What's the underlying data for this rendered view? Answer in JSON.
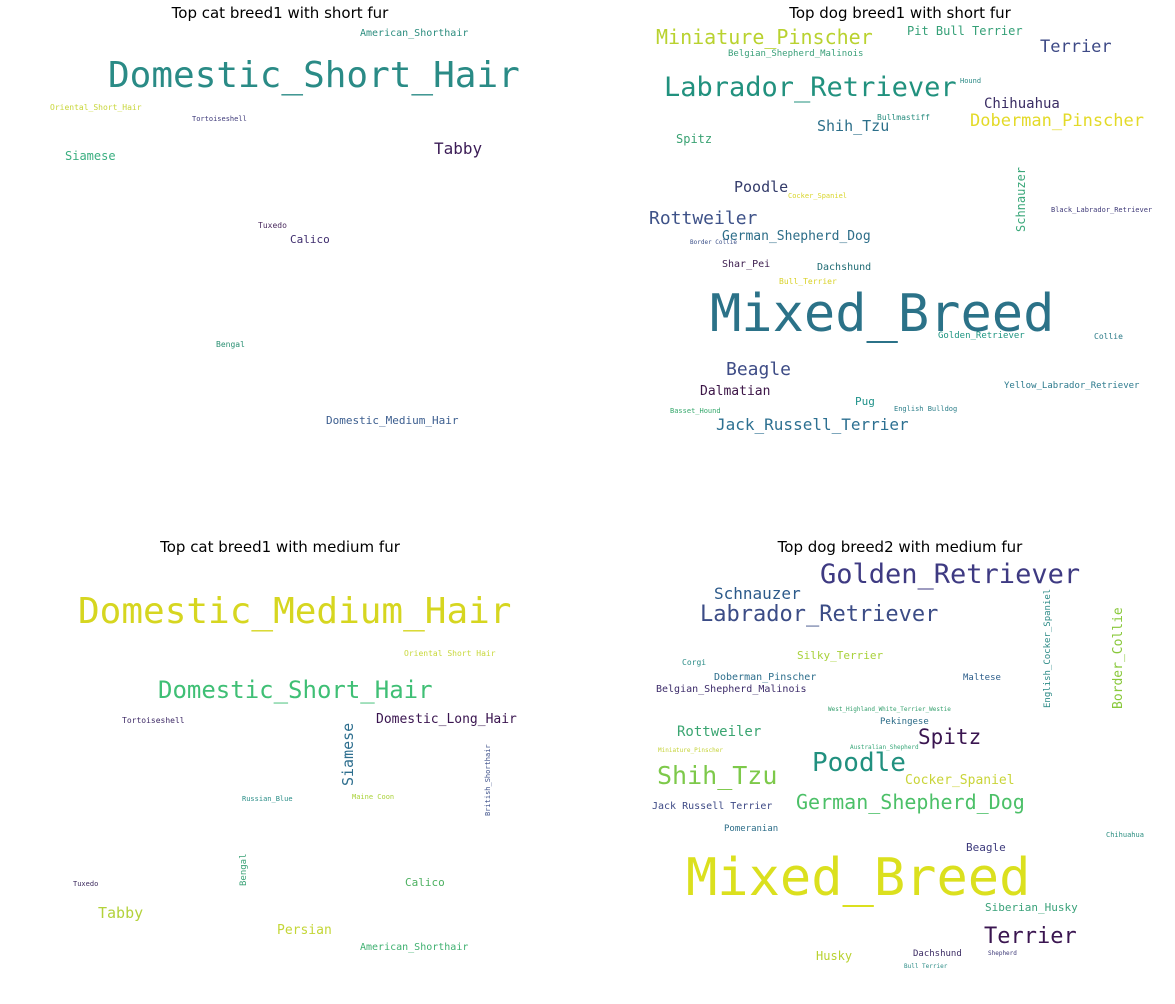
{
  "panels": [
    {
      "title": "Top cat breed1 with short fur",
      "words": [
        {
          "text": "Domestic_Short_Hair",
          "color": "#2a8b86"
        },
        {
          "text": "American_Shorthair",
          "color": "#2b8c7e"
        },
        {
          "text": "Tabby",
          "color": "#3b1c56"
        },
        {
          "text": "Siamese",
          "color": "#3aae80"
        },
        {
          "text": "Tortoiseshell",
          "color": "#3e3a7a"
        },
        {
          "text": "Oriental_Short_Hair",
          "color": "#c8d63a"
        },
        {
          "text": "Calico",
          "color": "#3e2c6d"
        },
        {
          "text": "Tuxedo",
          "color": "#4a2a5e"
        },
        {
          "text": "Bengal",
          "color": "#2b9073"
        },
        {
          "text": "Domestic_Medium_Hair",
          "color": "#3c5e8f"
        }
      ]
    },
    {
      "title": "Top dog breed1 with short fur",
      "words": [
        {
          "text": "Miniature_Pinscher",
          "color": "#b9d22f"
        },
        {
          "text": "Pit Bull Terrier",
          "color": "#35a077"
        },
        {
          "text": "Terrier",
          "color": "#3e4a86"
        },
        {
          "text": "Belgian_Shepherd_Malinois",
          "color": "#3aa07a"
        },
        {
          "text": "Labrador_Retriever",
          "color": "#21917e"
        },
        {
          "text": "Chihuahua",
          "color": "#3a2d64"
        },
        {
          "text": "Shih_Tzu",
          "color": "#2c6f8a"
        },
        {
          "text": "Doberman_Pinscher",
          "color": "#e3da28"
        },
        {
          "text": "Spitz",
          "color": "#3aa273"
        },
        {
          "text": "Poodle",
          "color": "#333b6a"
        },
        {
          "text": "Schnauzer",
          "color": "#3ba87a"
        },
        {
          "text": "Rottweiler",
          "color": "#3e5288"
        },
        {
          "text": "German_Shepherd_Dog",
          "color": "#2c6d88"
        },
        {
          "text": "Shar_Pei",
          "color": "#3c1d4e"
        },
        {
          "text": "Dachshund",
          "color": "#206c74"
        },
        {
          "text": "Bull_Terrier",
          "color": "#d9d228"
        },
        {
          "text": "Mixed_Breed",
          "color": "#2b7288"
        },
        {
          "text": "Golden_Retriever",
          "color": "#1d9480"
        },
        {
          "text": "Collie",
          "color": "#2a7a87"
        },
        {
          "text": "Beagle",
          "color": "#3e4c86"
        },
        {
          "text": "Dalmatian",
          "color": "#3c1547"
        },
        {
          "text": "Pug",
          "color": "#20928a"
        },
        {
          "text": "Yellow_Labrador_Retriever",
          "color": "#2c7a8d"
        },
        {
          "text": "Basset_Hound",
          "color": "#35a86c"
        },
        {
          "text": "English Bulldog",
          "color": "#2c7f8a"
        },
        {
          "text": "Jack_Russell_Terrier",
          "color": "#2d7091"
        },
        {
          "text": "Hound",
          "color": "#2c8a86"
        },
        {
          "text": "Bullmastiff",
          "color": "#2a8e80"
        },
        {
          "text": "Black_Labrador_Retriever",
          "color": "#3f3a78"
        },
        {
          "text": "Cocker_Spaniel",
          "color": "#d8d52a"
        },
        {
          "text": "Border Collie",
          "color": "#3a4f88"
        }
      ]
    },
    {
      "title": "Top cat breed1 with medium fur",
      "words": [
        {
          "text": "Domestic_Medium_Hair",
          "color": "#d6d620"
        },
        {
          "text": "Domestic_Short_Hair",
          "color": "#3fbf75"
        },
        {
          "text": "Domestic_Long_Hair",
          "color": "#3a1550"
        },
        {
          "text": "Siamese",
          "color": "#2d6e8e"
        },
        {
          "text": "Oriental Short Hair",
          "color": "#c8d83b"
        },
        {
          "text": "Tortoiseshell",
          "color": "#3e2a66"
        },
        {
          "text": "Tabby",
          "color": "#b3d23a"
        },
        {
          "text": "Persian",
          "color": "#c4d637"
        },
        {
          "text": "Calico",
          "color": "#4cb060"
        },
        {
          "text": "Bengal",
          "color": "#3aa276"
        },
        {
          "text": "American_Shorthair",
          "color": "#3fb070"
        },
        {
          "text": "Russian_Blue",
          "color": "#2b8e88"
        },
        {
          "text": "Maine Coon",
          "color": "#aad23a"
        },
        {
          "text": "Tuxedo",
          "color": "#3c2a5e"
        },
        {
          "text": "British_Shorthair",
          "color": "#3c4f88"
        }
      ]
    },
    {
      "title": "Top dog breed2 with medium fur",
      "words": [
        {
          "text": "Golden_Retriever",
          "color": "#3e3a82"
        },
        {
          "text": "Schnauzer",
          "color": "#2c5a8a"
        },
        {
          "text": "Labrador_Retriever",
          "color": "#3b4c86"
        },
        {
          "text": "Silky_Terrier",
          "color": "#a8d13a"
        },
        {
          "text": "English_Cocker_Spaniel",
          "color": "#2c8a86"
        },
        {
          "text": "Border_Collie",
          "color": "#88c83a"
        },
        {
          "text": "Corgi",
          "color": "#2a8b86"
        },
        {
          "text": "Doberman_Pinscher",
          "color": "#2d6e8c"
        },
        {
          "text": "Maltese",
          "color": "#2c5d8a"
        },
        {
          "text": "Belgian_Shepherd_Malinois",
          "color": "#3d2c6a"
        },
        {
          "text": "West_Highland_White_Terrier_Westie",
          "color": "#35a06e"
        },
        {
          "text": "Pekingese",
          "color": "#2a6a86"
        },
        {
          "text": "Rottweiler",
          "color": "#3aa571"
        },
        {
          "text": "Spitz",
          "color": "#3a1550"
        },
        {
          "text": "Miniature_Pinscher",
          "color": "#c5d337"
        },
        {
          "text": "Australian_Shepherd",
          "color": "#3aa87a"
        },
        {
          "text": "Shih_Tzu",
          "color": "#7dc94a"
        },
        {
          "text": "Poodle",
          "color": "#21907f"
        },
        {
          "text": "Cocker_Spaniel",
          "color": "#c9d438"
        },
        {
          "text": "Jack Russell Terrier",
          "color": "#3e4a86"
        },
        {
          "text": "German_Shepherd_Dog",
          "color": "#4cc068"
        },
        {
          "text": "Pomeranian",
          "color": "#2c6d88"
        },
        {
          "text": "Chihuahua",
          "color": "#2b8e80"
        },
        {
          "text": "Beagle",
          "color": "#3d3a7c"
        },
        {
          "text": "Mixed_Breed",
          "color": "#dbe01e"
        },
        {
          "text": "Siberian_Husky",
          "color": "#3aa27a"
        },
        {
          "text": "Terrier",
          "color": "#3a1550"
        },
        {
          "text": "Husky",
          "color": "#b9d22f"
        },
        {
          "text": "Dachshund",
          "color": "#3c2c64"
        },
        {
          "text": "Shepherd",
          "color": "#3e3a78"
        },
        {
          "text": "Bull Terrier",
          "color": "#2b8c86"
        }
      ]
    }
  ]
}
